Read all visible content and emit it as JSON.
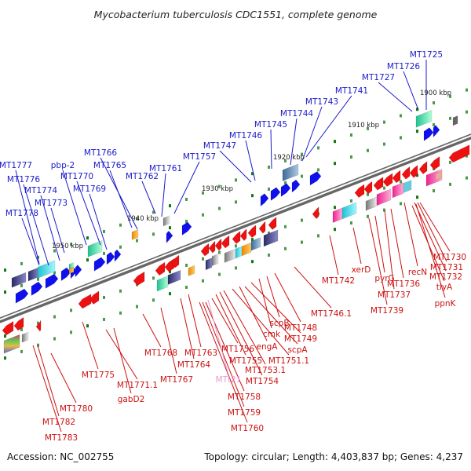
{
  "title": "Mycobacterium tuberculosis CDC1551, complete genome",
  "footer": {
    "accession": "Accession: NC_002755",
    "topology": "Topology: circular; Length: 4,403,837 bp; Genes: 4,237"
  },
  "colors": {
    "top_labels": "#1a1acc",
    "bottom_labels": "#cc1111",
    "rna_label": "#e89ad8",
    "plus_strand": "#1010ee",
    "minus_strand": "#ee1111",
    "backbone": "#777777"
  },
  "scale_labels": [
    "1900 kbp",
    "1910 kbp",
    "1920 kbp",
    "1930 kbp",
    "1940 kbp",
    "1950 kbp"
  ],
  "top_genes": [
    "MT1725",
    "MT1726",
    "MT1727",
    "MT1741",
    "MT1743",
    "MT1744",
    "MT1745",
    "MT1746",
    "MT1747",
    "MT1757",
    "MT1761",
    "MT1762",
    "MT1765",
    "MT1766",
    "MT1769",
    "MT1770",
    "pbp-2",
    "MT1777",
    "MT1776",
    "MT1774",
    "MT1773",
    "MT1778"
  ],
  "bottom_genes": [
    "MT1730",
    "MT1731",
    "MT1732",
    "recN",
    "tlyA",
    "ppnK",
    "MT1736",
    "MT1737",
    "pyrG",
    "MT1739",
    "xerD",
    "MT1742",
    "MT1746.1",
    "MT1748",
    "scpB",
    "cmk",
    "MT1749",
    "engA",
    "scpA",
    "MT1751.1",
    "MT1753.1",
    "MT1754",
    "MT1755",
    "MT1756",
    "MT1763",
    "MT1764",
    "MT1768",
    "MT1767",
    "MT1758",
    "MT1759",
    "MT1760",
    "MT1771.1",
    "gabD2",
    "MT1775",
    "MT1780",
    "MT1782",
    "MT1783"
  ],
  "rna_gene": "MTt21"
}
